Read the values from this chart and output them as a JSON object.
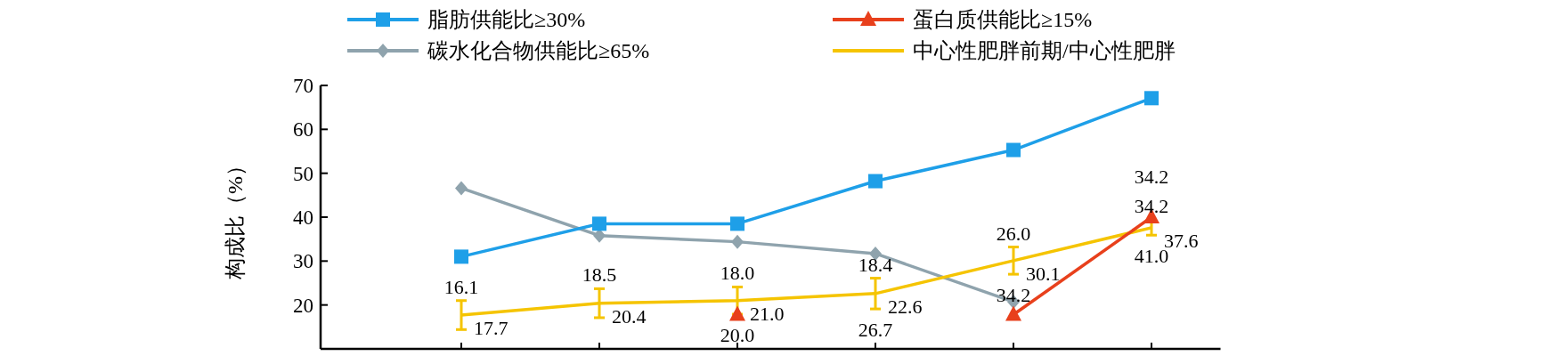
{
  "chart_data": {
    "type": "line",
    "ylabel": "构成比（%）",
    "categories": [
      null,
      null,
      null,
      null,
      null,
      null
    ],
    "ylim": [
      10,
      70
    ],
    "yticks": [
      20,
      30,
      40,
      50,
      60,
      70
    ],
    "legend": "top",
    "grid": false,
    "series": [
      {
        "name": "脂肪供能比≥30%",
        "color": "#1e9fe8",
        "marker": "square",
        "values": [
          31.0,
          38.5,
          38.5,
          48.2,
          55.3,
          67.1
        ]
      },
      {
        "name": "蛋白质供能比≥15%",
        "color": "#e8401c",
        "marker": "triangle",
        "values": [
          null,
          null,
          17.8,
          null,
          17.8,
          40.0
        ]
      },
      {
        "name": "碳水化合物供能比≥65%",
        "color": "#8fa3ad",
        "marker": "diamond",
        "values": [
          46.6,
          35.8,
          34.4,
          31.7,
          20.7,
          null
        ]
      },
      {
        "name": "中心性肥胖前期/中心性肥胖",
        "color": "#f5c400",
        "marker": "none",
        "values": [
          17.7,
          20.4,
          21.0,
          22.6,
          30.1,
          37.6
        ],
        "errors": [
          3.3,
          3.3,
          3.1,
          3.5,
          3.1,
          1.7
        ],
        "value_labels": [
          "17.7",
          "20.4",
          "21.0",
          "22.6",
          "30.1",
          "37.6"
        ]
      }
    ],
    "annotations": [
      "16.1",
      "18.5",
      "18.0",
      "18.4",
      "26.0",
      "34.2",
      "20.0",
      "26.7",
      "34.2",
      "41.0",
      "34.2"
    ]
  }
}
